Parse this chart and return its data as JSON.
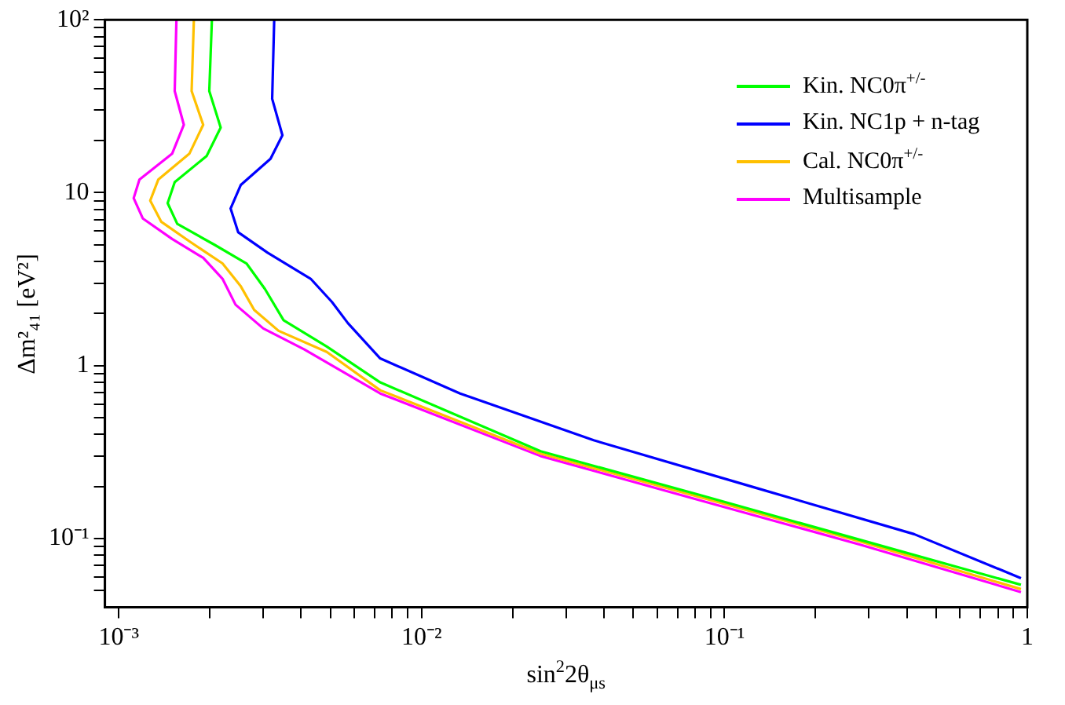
{
  "chart_data": {
    "type": "line",
    "xlabel": "sin$^{2}$2θ$_{μs}$",
    "ylabel": "Δm²₄₁ [eV²]",
    "log": "xy",
    "grid": false,
    "legend": "top right",
    "marker": "none",
    "line_style": "solid",
    "xlim": [
      0.0009,
      1
    ],
    "ylim": [
      0.04,
      100
    ],
    "xticks": [
      {
        "value": 0.001,
        "label": "10⁻³"
      },
      {
        "value": 0.002,
        "label": null
      },
      {
        "value": 0.003,
        "label": null
      },
      {
        "value": 0.004,
        "label": null
      },
      {
        "value": 0.005,
        "label": null
      },
      {
        "value": 0.006,
        "label": null
      },
      {
        "value": 0.007,
        "label": null
      },
      {
        "value": 0.008,
        "label": null
      },
      {
        "value": 0.009,
        "label": null
      },
      {
        "value": 0.01,
        "label": "10⁻²"
      },
      {
        "value": 0.02,
        "label": null
      },
      {
        "value": 0.03,
        "label": null
      },
      {
        "value": 0.04,
        "label": null
      },
      {
        "value": 0.05,
        "label": null
      },
      {
        "value": 0.06,
        "label": null
      },
      {
        "value": 0.07,
        "label": null
      },
      {
        "value": 0.08,
        "label": null
      },
      {
        "value": 0.09,
        "label": null
      },
      {
        "value": 0.1,
        "label": "10⁻¹"
      },
      {
        "value": 0.2,
        "label": null
      },
      {
        "value": 0.3,
        "label": null
      },
      {
        "value": 0.4,
        "label": null
      },
      {
        "value": 0.5,
        "label": null
      },
      {
        "value": 0.6,
        "label": null
      },
      {
        "value": 0.7,
        "label": null
      },
      {
        "value": 0.8,
        "label": null
      },
      {
        "value": 0.9,
        "label": null
      },
      1
    ],
    "yticks": [
      {
        "value": 0.05,
        "label": null
      },
      {
        "value": 0.06,
        "label": null
      },
      {
        "value": 0.07,
        "label": null
      },
      {
        "value": 0.08,
        "label": null
      },
      {
        "value": 0.09,
        "label": null
      },
      {
        "value": 0.1,
        "label": "10⁻¹"
      },
      {
        "value": 0.2,
        "label": null
      },
      {
        "value": 0.3,
        "label": null
      },
      {
        "value": 0.4,
        "label": null
      },
      {
        "value": 0.5,
        "label": null
      },
      {
        "value": 0.6,
        "label": null
      },
      {
        "value": 0.7,
        "label": null
      },
      {
        "value": 0.8,
        "label": null
      },
      {
        "value": 0.9,
        "label": null
      },
      1,
      {
        "value": 2,
        "label": null
      },
      {
        "value": 3,
        "label": null
      },
      {
        "value": 4,
        "label": null
      },
      {
        "value": 5,
        "label": null
      },
      {
        "value": 6,
        "label": null
      },
      {
        "value": 7,
        "label": null
      },
      {
        "value": 8,
        "label": null
      },
      {
        "value": 9,
        "label": null
      },
      10,
      {
        "value": 20,
        "label": null
      },
      {
        "value": 30,
        "label": null
      },
      {
        "value": 40,
        "label": null
      },
      {
        "value": 50,
        "label": null
      },
      {
        "value": 60,
        "label": null
      },
      {
        "value": 70,
        "label": null
      },
      {
        "value": 80,
        "label": null
      },
      {
        "value": 90,
        "label": null
      },
      {
        "value": 100,
        "label": "10²"
      }
    ],
    "series": [
      {
        "name": "Kin. NC0π$^{+/-}$",
        "color": "#00ff00",
        "x": [
          0.00203,
          0.00199,
          0.00217,
          0.00195,
          0.00153,
          0.00145,
          0.00156,
          0.00207,
          0.00264,
          0.00304,
          0.0035,
          0.00486,
          0.0073,
          0.0247,
          0.0834,
          0.282,
          0.953
        ],
        "values": [
          100,
          38.7,
          23.8,
          16.3,
          11.5,
          8.7,
          6.6,
          5.0,
          3.9,
          2.77,
          1.83,
          1.29,
          0.8,
          0.32,
          0.178,
          0.098,
          0.054
        ]
      },
      {
        "name": "Kin. NC1p + n-tag",
        "color": "#0000ff",
        "x": [
          0.00326,
          0.00321,
          0.00347,
          0.00317,
          0.00253,
          0.00234,
          0.00248,
          0.0031,
          0.0043,
          0.00506,
          0.00571,
          0.0073,
          0.0134,
          0.037,
          0.125,
          0.423,
          0.953
        ],
        "values": [
          100,
          34.9,
          21.5,
          15.7,
          11.1,
          8.1,
          5.9,
          4.5,
          3.18,
          2.33,
          1.76,
          1.1,
          0.69,
          0.37,
          0.198,
          0.106,
          0.059
        ]
      },
      {
        "name": "Cal. NC0π$^{+/-}$",
        "color": "#ffc000",
        "x": [
          0.00177,
          0.00174,
          0.0019,
          0.00171,
          0.00135,
          0.00127,
          0.00138,
          0.00172,
          0.0022,
          0.00253,
          0.0028,
          0.00337,
          0.00486,
          0.0073,
          0.0247,
          0.0834,
          0.282,
          0.953
        ],
        "values": [
          100,
          38.7,
          24.7,
          16.8,
          11.9,
          9.0,
          6.8,
          5.2,
          3.9,
          2.87,
          2.1,
          1.59,
          1.2,
          0.72,
          0.31,
          0.173,
          0.096,
          0.051
        ]
      },
      {
        "name": "Multisample",
        "color": "#ff00ff",
        "x": [
          0.00155,
          0.00153,
          0.00164,
          0.0015,
          0.00117,
          0.00112,
          0.0012,
          0.0015,
          0.0019,
          0.0022,
          0.00243,
          0.003,
          0.0041,
          0.0073,
          0.0247,
          0.0834,
          0.282,
          0.953
        ],
        "values": [
          100,
          38.7,
          24.7,
          16.8,
          11.9,
          9.3,
          7.1,
          5.4,
          4.2,
          3.18,
          2.25,
          1.64,
          1.24,
          0.69,
          0.3,
          0.166,
          0.092,
          0.049
        ]
      }
    ]
  }
}
